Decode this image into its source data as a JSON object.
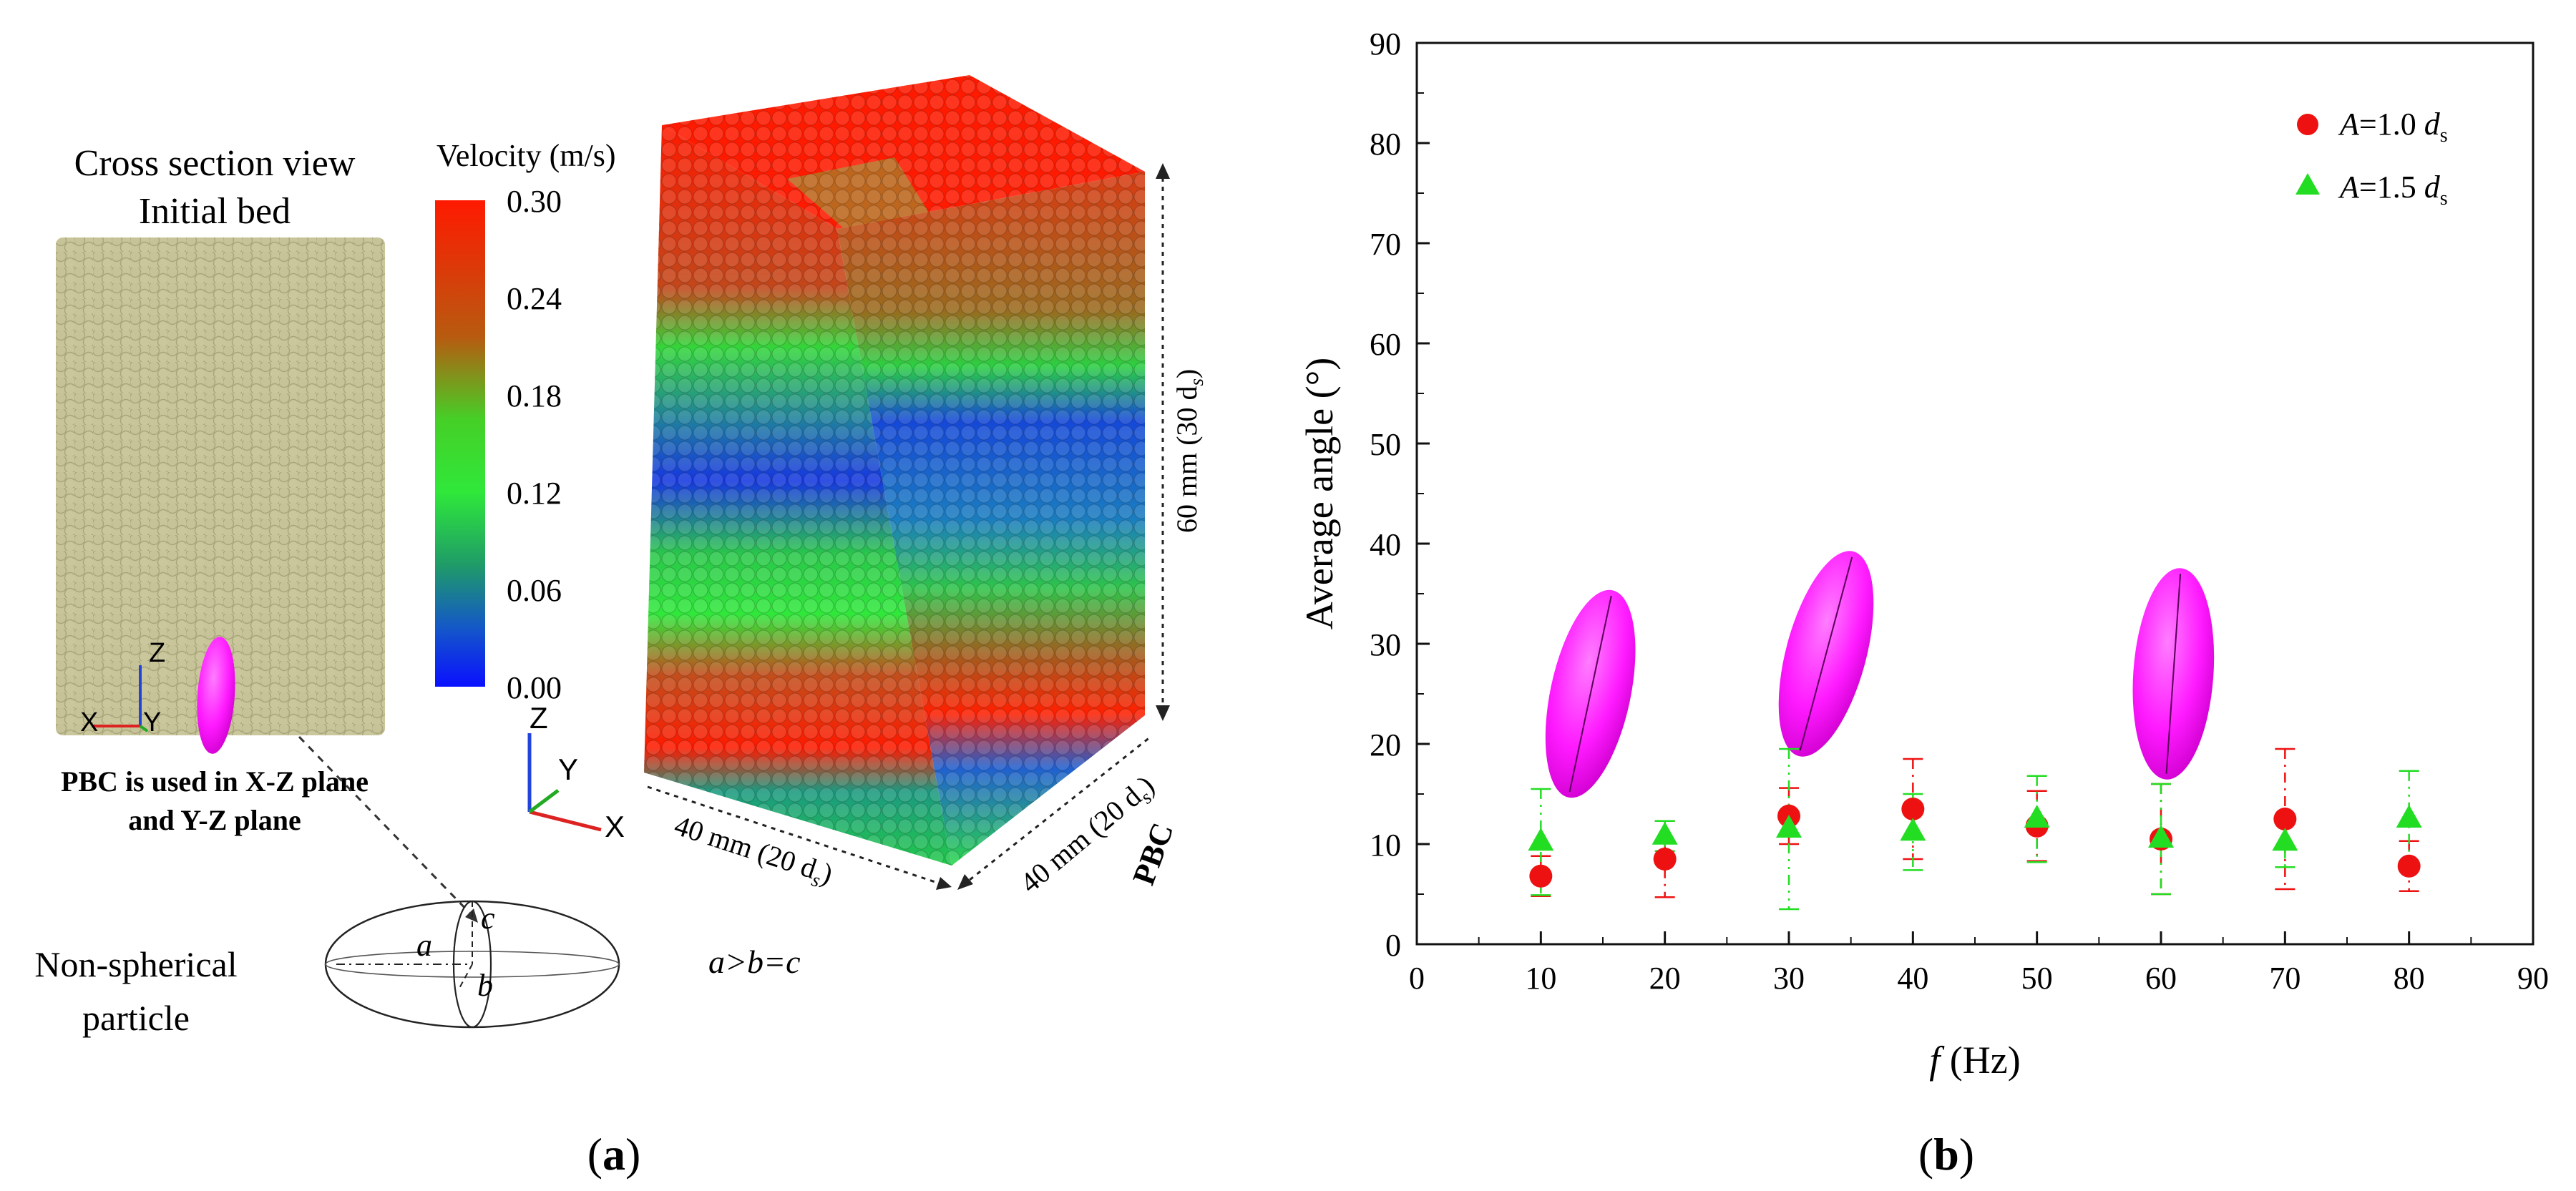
{
  "panel_a": {
    "label": "a",
    "cross_section": {
      "title_line1": "Cross section view",
      "title_line2": "Initial bed",
      "pbc_line1": "PBC is used in X-Z plane",
      "pbc_line2": "and Y-Z plane",
      "axes": {
        "x": "X",
        "y": "Y",
        "z": "Z"
      }
    },
    "colorbar": {
      "title": "Velocity (m/s)",
      "ticks": [
        "0.30",
        "0.24",
        "0.18",
        "0.12",
        "0.06",
        "0.00"
      ],
      "colors": [
        "#ff1a00",
        "#2ee82e",
        "#0a10ff"
      ]
    },
    "bed3d": {
      "axes": {
        "x": "X",
        "y": "Y",
        "z": "Z"
      },
      "height_label": "60 mm (30 d",
      "height_sub": "s",
      "width_label": "40 mm (20 d",
      "width_sub": "s",
      "depth_label": "40 mm (20 d",
      "depth_sub": "s",
      "close_paren": ")",
      "pbc_label": "PBC"
    },
    "particle": {
      "caption_line1": "Non-spherical",
      "caption_line2": "particle",
      "a": "a",
      "b": "b",
      "c": "c",
      "relation": "a>b=c"
    },
    "colors": {
      "bed_fill": "#c9c59a",
      "particle_magenta": "#ff1aff"
    }
  },
  "panel_b": {
    "label": "b"
  },
  "chart_data": {
    "type": "scatter",
    "xlabel_var": "f",
    "xlabel_unit": " (Hz)",
    "ylabel": "Average angle (°)",
    "xlim": [
      0,
      90
    ],
    "ylim": [
      0,
      90
    ],
    "x_ticks": [
      0,
      10,
      20,
      30,
      40,
      50,
      60,
      70,
      80,
      90
    ],
    "y_ticks": [
      0,
      10,
      20,
      30,
      40,
      50,
      60,
      70,
      80,
      90
    ],
    "series": [
      {
        "name": "A=1.0 d",
        "legend_var": "A",
        "legend_rest": "=1.0 ",
        "legend_d": "d",
        "legend_sub": "s",
        "marker": "circle",
        "color": "#ee1111",
        "x": [
          10,
          20,
          30,
          40,
          50,
          60,
          70,
          80
        ],
        "y": [
          6.8,
          8.5,
          12.8,
          13.5,
          11.8,
          10.5,
          12.5,
          7.8
        ],
        "err": [
          2.0,
          3.8,
          2.8,
          5.0,
          3.5,
          5.5,
          7.0,
          2.5
        ]
      },
      {
        "name": "A=1.5 d",
        "legend_var": "A",
        "legend_rest": "=1.5 ",
        "legend_d": "d",
        "legend_sub": "s",
        "marker": "triangle",
        "color": "#22dd22",
        "x": [
          10,
          20,
          30,
          40,
          50,
          60,
          70,
          80
        ],
        "y": [
          10.2,
          10.8,
          11.5,
          11.2,
          12.5,
          10.5,
          10.2,
          12.5
        ],
        "err": [
          5.3,
          1.5,
          8.0,
          3.8,
          4.3,
          5.5,
          2.5,
          4.8
        ]
      }
    ],
    "orientation_glyphs": [
      {
        "x": 14,
        "y": 25,
        "tilt_deg": 12
      },
      {
        "x": 33,
        "y": 29,
        "tilt_deg": 15
      },
      {
        "x": 61,
        "y": 27,
        "tilt_deg": 4
      }
    ]
  }
}
